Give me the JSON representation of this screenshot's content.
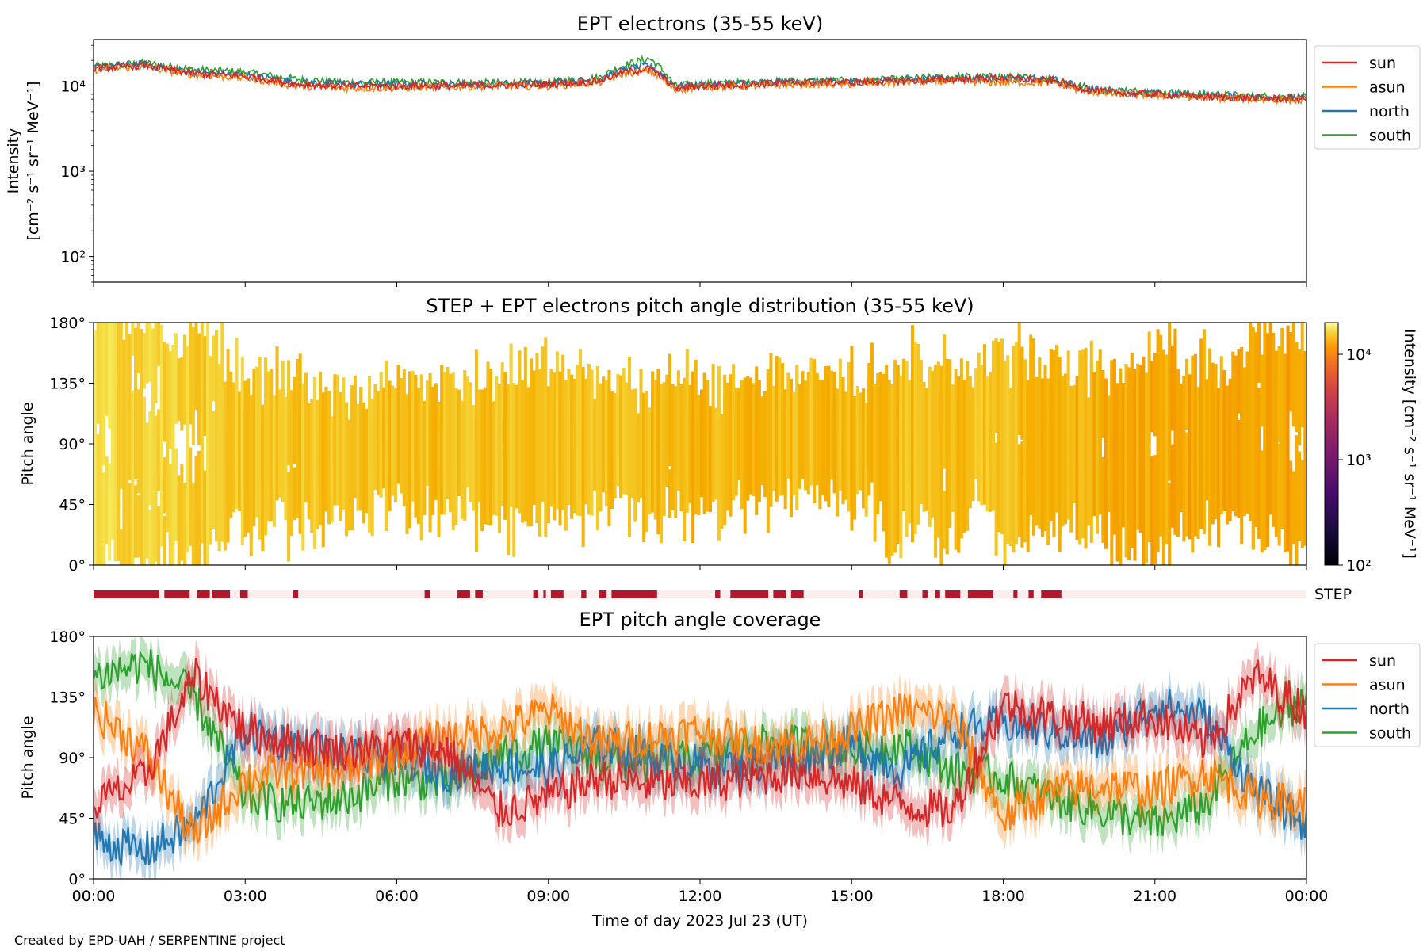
{
  "charts": {
    "intensity": {
      "title": "EPT electrons (35-55 keV)",
      "ylabel_line1": "Intensity",
      "ylabel_line2": "[cm⁻² s⁻¹ sr⁻¹ MeV⁻¹]",
      "ytick_labels": [
        "10²",
        "10³",
        "10⁴"
      ]
    },
    "pad": {
      "title": "STEP + EPT electrons pitch angle distribution (35-55 keV)",
      "ylabel": "Pitch angle",
      "ytick_labels": [
        "0°",
        "45°",
        "90°",
        "135°",
        "180°"
      ],
      "colorbar_label": "Intensity [cm⁻² s⁻¹ sr⁻¹ MeV⁻¹]",
      "colorbar_ticks": [
        "10²",
        "10³",
        "10⁴"
      ]
    },
    "step_bar": {
      "label": "STEP"
    },
    "coverage": {
      "title": "EPT pitch angle coverage",
      "ylabel": "Pitch angle",
      "ytick_labels": [
        "0°",
        "45°",
        "90°",
        "135°",
        "180°"
      ],
      "xlabel": "Time of day 2023 Jul 23 (UT)",
      "xtick_labels": [
        "00:00",
        "03:00",
        "06:00",
        "09:00",
        "12:00",
        "15:00",
        "18:00",
        "21:00",
        "00:00"
      ]
    }
  },
  "legend": [
    {
      "name": "sun",
      "color": "#d62728"
    },
    {
      "name": "asun",
      "color": "#ff7f0e"
    },
    {
      "name": "north",
      "color": "#1f77b4"
    },
    {
      "name": "south",
      "color": "#2ca02c"
    }
  ],
  "footer": {
    "credit": "Created by EPD-UAH / SERPENTINE project"
  },
  "chart_data": [
    {
      "type": "line",
      "title": "EPT electrons (35-55 keV)",
      "xlabel": "",
      "ylabel": "Intensity [cm⁻² s⁻¹ sr⁻¹ MeV⁻¹]",
      "yscale": "log",
      "ylim": [
        50,
        35000
      ],
      "xlim_hours": [
        0,
        24
      ],
      "x_hours": [
        0,
        1,
        1.5,
        2,
        3,
        4,
        5,
        6,
        7,
        8,
        9,
        10,
        10.5,
        11,
        11.5,
        12,
        13,
        14,
        15,
        16,
        17,
        18,
        19,
        19.5,
        20,
        21,
        22,
        23,
        24
      ],
      "series": [
        {
          "name": "sun",
          "values": [
            16000,
            17500,
            15500,
            14000,
            13000,
            10500,
            10000,
            10000,
            10000,
            10200,
            10500,
            11500,
            14500,
            16000,
            9500,
            10000,
            10500,
            11000,
            11000,
            11500,
            12000,
            12500,
            11500,
            9500,
            8500,
            8000,
            7500,
            7200,
            7000
          ]
        },
        {
          "name": "asun",
          "values": [
            15500,
            17000,
            15000,
            13500,
            12500,
            10000,
            9500,
            9500,
            9800,
            10000,
            10000,
            11000,
            14000,
            15000,
            9000,
            9800,
            10000,
            10500,
            10500,
            11000,
            11500,
            11000,
            11000,
            9000,
            8200,
            7800,
            7300,
            7000,
            6800
          ]
        },
        {
          "name": "north",
          "values": [
            16500,
            18000,
            16000,
            14500,
            13500,
            11000,
            10500,
            10500,
            10500,
            10500,
            10800,
            12000,
            15500,
            17500,
            9800,
            10300,
            10800,
            11200,
            11200,
            11800,
            12300,
            12000,
            11800,
            9800,
            8800,
            8200,
            7700,
            7400,
            7200
          ]
        },
        {
          "name": "south",
          "values": [
            17000,
            18500,
            17000,
            15500,
            14500,
            12000,
            11000,
            11000,
            11000,
            10800,
            11000,
            12500,
            17500,
            21000,
            10000,
            10500,
            11000,
            11500,
            11500,
            12000,
            12800,
            12800,
            12000,
            10000,
            9000,
            8500,
            8000,
            7600,
            7400
          ]
        }
      ]
    },
    {
      "type": "heatmap",
      "title": "STEP + EPT electrons pitch angle distribution (35-55 keV)",
      "ylabel": "Pitch angle",
      "ylim": [
        0,
        180
      ],
      "xlim_hours": [
        0,
        24
      ],
      "colorbar": {
        "scale": "log",
        "range": [
          100,
          20000
        ],
        "colormap": "inferno"
      },
      "x_hours": [
        0,
        2,
        4,
        6,
        8,
        10,
        12,
        14,
        16,
        18,
        20,
        22,
        24
      ],
      "intensity_by_time": [
        18000,
        15000,
        13000,
        12000,
        12000,
        12000,
        10000,
        11000,
        11500,
        12000,
        9000,
        8000,
        7500
      ]
    },
    {
      "type": "bar",
      "name": "STEP",
      "description_of_values": "STEP data coverage intervals (hours) shown as dark red segments",
      "intervals_hours": [
        [
          0.0,
          1.3
        ],
        [
          1.4,
          1.9
        ],
        [
          2.05,
          2.3
        ],
        [
          2.35,
          2.7
        ],
        [
          2.9,
          3.05
        ],
        [
          3.95,
          4.05
        ],
        [
          6.55,
          6.65
        ],
        [
          7.2,
          7.45
        ],
        [
          7.55,
          7.7
        ],
        [
          8.7,
          8.8
        ],
        [
          8.9,
          8.95
        ],
        [
          9.05,
          9.3
        ],
        [
          9.65,
          9.75
        ],
        [
          10.0,
          10.15
        ],
        [
          10.25,
          11.15
        ],
        [
          12.3,
          12.4
        ],
        [
          12.6,
          13.35
        ],
        [
          13.45,
          13.7
        ],
        [
          13.8,
          14.05
        ],
        [
          15.15,
          15.22
        ],
        [
          15.95,
          16.1
        ],
        [
          16.4,
          16.5
        ],
        [
          16.65,
          16.75
        ],
        [
          16.85,
          17.15
        ],
        [
          17.3,
          17.8
        ],
        [
          18.2,
          18.28
        ],
        [
          18.5,
          18.6
        ],
        [
          18.75,
          19.15
        ]
      ]
    },
    {
      "type": "line",
      "title": "EPT pitch angle coverage",
      "xlabel": "Time of day 2023 Jul 23 (UT)",
      "ylabel": "Pitch angle",
      "ylim": [
        0,
        180
      ],
      "xlim_hours": [
        0,
        24
      ],
      "x_hours": [
        0,
        1,
        2,
        3,
        4,
        5,
        6,
        7,
        8,
        9,
        10,
        11,
        12,
        13,
        14,
        15,
        16,
        17,
        18,
        19,
        20,
        21,
        22,
        23,
        24
      ],
      "series": [
        {
          "name": "sun",
          "values": [
            55,
            75,
            150,
            110,
            100,
            95,
            100,
            95,
            50,
            60,
            75,
            70,
            70,
            75,
            80,
            70,
            55,
            50,
            130,
            120,
            115,
            120,
            100,
            150,
            125
          ]
        },
        {
          "name": "asun",
          "values": [
            125,
            95,
            30,
            75,
            80,
            80,
            95,
            105,
            110,
            125,
            100,
            105,
            110,
            100,
            100,
            110,
            125,
            120,
            45,
            65,
            70,
            65,
            80,
            60,
            55
          ]
        },
        {
          "name": "north",
          "values": [
            30,
            20,
            40,
            110,
            100,
            90,
            90,
            80,
            85,
            80,
            100,
            90,
            85,
            85,
            90,
            100,
            80,
            110,
            115,
            110,
            100,
            130,
            120,
            65,
            40
          ]
        },
        {
          "name": "south",
          "values": [
            150,
            160,
            135,
            60,
            55,
            60,
            75,
            70,
            90,
            100,
            90,
            85,
            90,
            100,
            100,
            95,
            100,
            80,
            75,
            60,
            50,
            40,
            55,
            110,
            135
          ]
        }
      ],
      "bands": "shaded uncertainty band around each series"
    }
  ]
}
